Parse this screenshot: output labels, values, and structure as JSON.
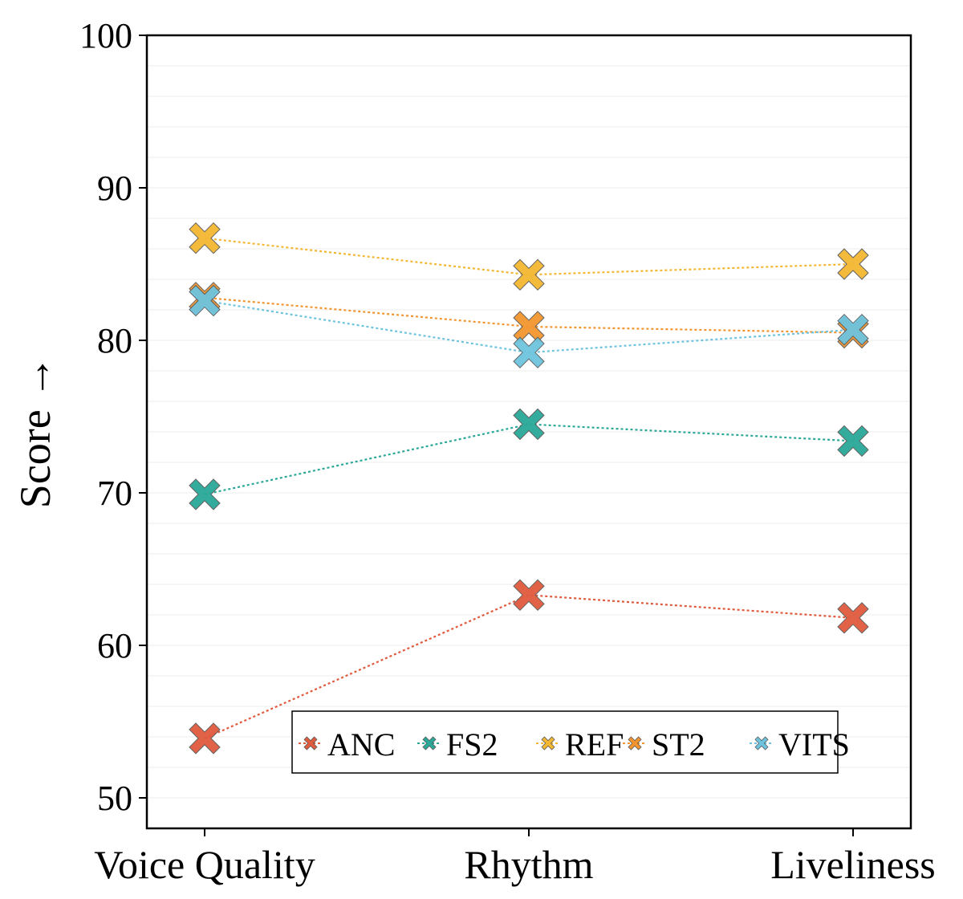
{
  "chart_data": {
    "type": "line",
    "categories": [
      "Voice Quality",
      "Rhythm",
      "Liveliness"
    ],
    "ylabel": "Score →",
    "xlabel": "",
    "ylim": [
      48,
      100
    ],
    "yticks": [
      50,
      60,
      70,
      80,
      90,
      100
    ],
    "grid": "minor horizontal lines, light",
    "legend_position": "bottom-center, inside plot",
    "marker": "x-cross",
    "line_style": "dotted",
    "series": [
      {
        "name": "ANC",
        "color": "#e05a3d",
        "values": [
          53.9,
          63.3,
          61.8
        ]
      },
      {
        "name": "FS2",
        "color": "#2aa898",
        "values": [
          69.9,
          74.5,
          73.4
        ]
      },
      {
        "name": "REF",
        "color": "#f3b731",
        "values": [
          86.7,
          84.3,
          85.0
        ]
      },
      {
        "name": "ST2",
        "color": "#f3952f",
        "values": [
          82.8,
          80.9,
          80.5
        ]
      },
      {
        "name": "VITS",
        "color": "#6ec4de",
        "values": [
          82.6,
          79.2,
          80.7
        ]
      }
    ]
  }
}
